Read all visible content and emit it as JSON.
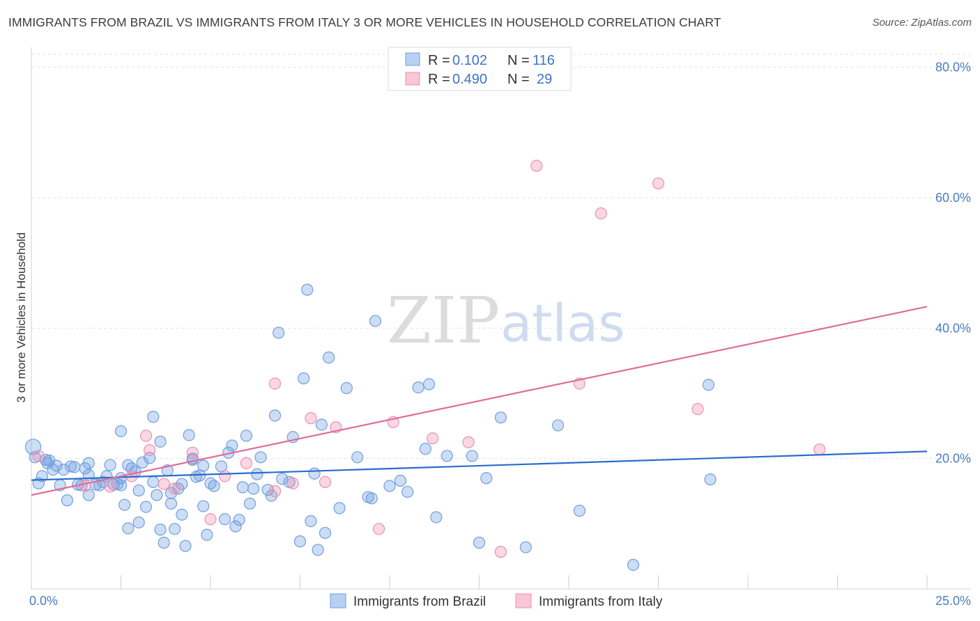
{
  "title": "IMMIGRANTS FROM BRAZIL VS IMMIGRANTS FROM ITALY 3 OR MORE VEHICLES IN HOUSEHOLD CORRELATION CHART",
  "source": "Source: ZipAtlas.com",
  "watermark": {
    "zip": "ZIP",
    "atlas": "atlas"
  },
  "colors": {
    "brazil": "#6f9fe0",
    "italy": "#ee8fb0",
    "brazil_line": "#2a6ccc",
    "italy_line": "#e06c98",
    "axis_text": "#4a7cc4"
  },
  "legend": {
    "rows": [
      {
        "r_label": "R =",
        "r_value": "0.102",
        "n_label": "N =",
        "n_value": "116"
      },
      {
        "r_label": "R =",
        "r_value": "0.490",
        "n_label": "N =",
        "n_value": "29"
      }
    ]
  },
  "chart_data": {
    "type": "scatter",
    "xlabel": "",
    "ylabel": "3 or more Vehicles in Household",
    "xlim": [
      0,
      25
    ],
    "ylim": [
      0,
      82
    ],
    "x_ticks_labels": [
      "0.0%",
      "25.0%"
    ],
    "y_ticks": [
      20,
      40,
      60,
      80
    ],
    "y_tick_labels": [
      "20.0%",
      "40.0%",
      "60.0%",
      "80.0%"
    ],
    "legend_position": "top-center",
    "grid": true,
    "series": [
      {
        "name": "Immigrants from Brazil",
        "trend": [
          [
            0,
            16.7
          ],
          [
            25,
            21.1
          ]
        ],
        "points": [
          [
            0.05,
            21.8
          ],
          [
            0.1,
            20.2
          ],
          [
            0.2,
            16.2
          ],
          [
            0.3,
            17.3
          ],
          [
            0.4,
            19.8
          ],
          [
            0.45,
            19.3
          ],
          [
            0.5,
            19.7
          ],
          [
            0.6,
            18.3
          ],
          [
            0.7,
            18.9
          ],
          [
            0.8,
            15.9
          ],
          [
            0.9,
            18.3
          ],
          [
            1.0,
            13.6
          ],
          [
            1.1,
            18.8
          ],
          [
            1.2,
            18.7
          ],
          [
            1.3,
            16.0
          ],
          [
            1.4,
            15.9
          ],
          [
            1.5,
            18.5
          ],
          [
            1.6,
            17.5
          ],
          [
            1.6,
            14.4
          ],
          [
            1.6,
            19.3
          ],
          [
            1.8,
            16.0
          ],
          [
            1.9,
            15.9
          ],
          [
            2.0,
            16.4
          ],
          [
            2.1,
            17.3
          ],
          [
            2.2,
            19.0
          ],
          [
            2.3,
            16.0
          ],
          [
            2.4,
            16.1
          ],
          [
            2.5,
            17.0
          ],
          [
            2.5,
            15.9
          ],
          [
            2.5,
            24.2
          ],
          [
            2.6,
            12.9
          ],
          [
            2.7,
            19.0
          ],
          [
            2.7,
            9.3
          ],
          [
            2.8,
            18.5
          ],
          [
            2.9,
            18.0
          ],
          [
            3.0,
            10.2
          ],
          [
            3.0,
            15.1
          ],
          [
            3.1,
            19.4
          ],
          [
            3.2,
            12.6
          ],
          [
            3.3,
            20.1
          ],
          [
            3.4,
            16.4
          ],
          [
            3.4,
            26.4
          ],
          [
            3.5,
            14.4
          ],
          [
            3.6,
            9.1
          ],
          [
            3.6,
            22.6
          ],
          [
            3.7,
            7.1
          ],
          [
            3.8,
            18.2
          ],
          [
            3.9,
            14.7
          ],
          [
            3.9,
            13.1
          ],
          [
            4.0,
            9.2
          ],
          [
            4.1,
            15.4
          ],
          [
            4.2,
            11.4
          ],
          [
            4.2,
            16.1
          ],
          [
            4.3,
            6.6
          ],
          [
            4.4,
            23.6
          ],
          [
            4.5,
            20.0
          ],
          [
            4.5,
            19.8
          ],
          [
            4.6,
            17.2
          ],
          [
            4.7,
            17.4
          ],
          [
            4.8,
            18.9
          ],
          [
            4.8,
            12.7
          ],
          [
            4.9,
            8.3
          ],
          [
            5.0,
            16.2
          ],
          [
            5.1,
            15.8
          ],
          [
            5.3,
            18.8
          ],
          [
            5.4,
            10.7
          ],
          [
            5.5,
            20.9
          ],
          [
            5.6,
            22.0
          ],
          [
            5.7,
            9.6
          ],
          [
            5.8,
            10.6
          ],
          [
            5.9,
            15.6
          ],
          [
            6.0,
            23.5
          ],
          [
            6.1,
            13.1
          ],
          [
            6.2,
            15.4
          ],
          [
            6.3,
            17.6
          ],
          [
            6.4,
            20.2
          ],
          [
            6.6,
            15.2
          ],
          [
            6.7,
            14.3
          ],
          [
            6.8,
            26.6
          ],
          [
            6.9,
            39.3
          ],
          [
            7.0,
            16.9
          ],
          [
            7.2,
            16.4
          ],
          [
            7.3,
            23.3
          ],
          [
            7.5,
            7.3
          ],
          [
            7.6,
            32.3
          ],
          [
            7.7,
            45.9
          ],
          [
            7.8,
            10.4
          ],
          [
            7.9,
            17.7
          ],
          [
            8.0,
            6.0
          ],
          [
            8.1,
            25.2
          ],
          [
            8.2,
            8.6
          ],
          [
            8.3,
            35.5
          ],
          [
            8.6,
            12.4
          ],
          [
            8.8,
            30.8
          ],
          [
            9.1,
            20.2
          ],
          [
            9.4,
            14.1
          ],
          [
            9.5,
            13.9
          ],
          [
            9.6,
            41.1
          ],
          [
            10.0,
            15.8
          ],
          [
            10.3,
            16.6
          ],
          [
            10.5,
            14.9
          ],
          [
            10.8,
            30.9
          ],
          [
            11.0,
            21.5
          ],
          [
            11.1,
            31.4
          ],
          [
            11.3,
            11.0
          ],
          [
            11.6,
            20.4
          ],
          [
            12.3,
            20.4
          ],
          [
            12.5,
            7.1
          ],
          [
            12.7,
            17.0
          ],
          [
            13.1,
            26.3
          ],
          [
            13.8,
            6.4
          ],
          [
            14.7,
            25.1
          ],
          [
            15.3,
            12.0
          ],
          [
            16.8,
            3.7
          ],
          [
            18.9,
            31.3
          ],
          [
            18.95,
            16.8
          ]
        ]
      },
      {
        "name": "Immigrants from Italy",
        "trend": [
          [
            0,
            14.4
          ],
          [
            25,
            43.3
          ]
        ],
        "points": [
          [
            0.2,
            20.4
          ],
          [
            1.5,
            15.8
          ],
          [
            2.2,
            15.7
          ],
          [
            2.8,
            17.3
          ],
          [
            3.2,
            23.5
          ],
          [
            3.3,
            21.3
          ],
          [
            3.7,
            16.1
          ],
          [
            4.0,
            15.4
          ],
          [
            4.5,
            20.9
          ],
          [
            5.0,
            10.7
          ],
          [
            5.4,
            17.3
          ],
          [
            6.0,
            19.3
          ],
          [
            6.8,
            31.5
          ],
          [
            6.8,
            15.0
          ],
          [
            7.3,
            16.2
          ],
          [
            7.8,
            26.2
          ],
          [
            8.2,
            16.4
          ],
          [
            8.5,
            24.8
          ],
          [
            9.7,
            9.2
          ],
          [
            10.1,
            25.6
          ],
          [
            11.2,
            23.1
          ],
          [
            12.2,
            22.5
          ],
          [
            13.1,
            5.7
          ],
          [
            14.1,
            64.9
          ],
          [
            15.3,
            31.5
          ],
          [
            15.9,
            57.6
          ],
          [
            17.5,
            62.2
          ],
          [
            18.6,
            27.6
          ],
          [
            22.0,
            21.4
          ]
        ]
      }
    ]
  },
  "bottom_legend": [
    {
      "label": "Immigrants from Brazil"
    },
    {
      "label": "Immigrants from Italy"
    }
  ]
}
